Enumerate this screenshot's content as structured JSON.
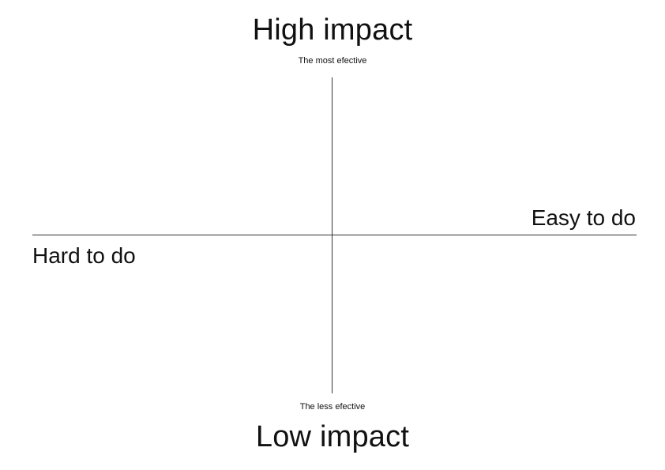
{
  "matrix": {
    "top_title": "High impact",
    "top_subtitle": "The most efective",
    "bottom_subtitle": "The less efective",
    "bottom_title": "Low impact",
    "right_label": "Easy to do",
    "left_label": "Hard to do"
  }
}
